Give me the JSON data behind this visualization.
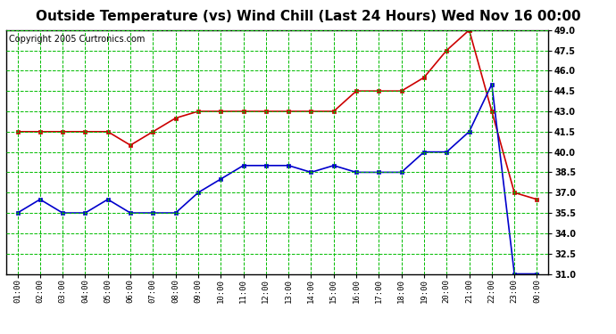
{
  "title": "Outside Temperature (vs) Wind Chill (Last 24 Hours) Wed Nov 16 00:00",
  "copyright": "Copyright 2005 Curtronics.com",
  "x_labels": [
    "01:00",
    "02:00",
    "03:00",
    "04:00",
    "05:00",
    "06:00",
    "07:00",
    "08:00",
    "09:00",
    "10:00",
    "11:00",
    "12:00",
    "13:00",
    "14:00",
    "15:00",
    "16:00",
    "17:00",
    "18:00",
    "19:00",
    "20:00",
    "21:00",
    "22:00",
    "23:00",
    "00:00"
  ],
  "red_data": [
    41.5,
    41.5,
    41.5,
    41.5,
    41.5,
    40.5,
    41.5,
    42.5,
    43.0,
    43.0,
    43.0,
    43.0,
    43.0,
    43.0,
    43.0,
    44.5,
    44.5,
    44.5,
    45.5,
    47.5,
    49.0,
    43.0,
    37.0,
    36.5
  ],
  "blue_data": [
    35.5,
    36.5,
    35.5,
    35.5,
    36.5,
    35.5,
    35.5,
    35.5,
    37.0,
    38.0,
    39.0,
    39.0,
    39.0,
    38.5,
    39.0,
    38.5,
    38.5,
    38.5,
    40.0,
    40.0,
    41.5,
    45.0,
    31.0,
    31.0
  ],
  "red_color": "#cc0000",
  "blue_color": "#0000cc",
  "bg_color": "#ffffff",
  "plot_bg_color": "#ffffff",
  "grid_color": "#00bb00",
  "ylim": [
    31.0,
    49.0
  ],
  "yticks": [
    31.0,
    32.5,
    34.0,
    35.5,
    37.0,
    38.5,
    40.0,
    41.5,
    43.0,
    44.5,
    46.0,
    47.5,
    49.0
  ],
  "title_fontsize": 11,
  "copyright_fontsize": 7
}
